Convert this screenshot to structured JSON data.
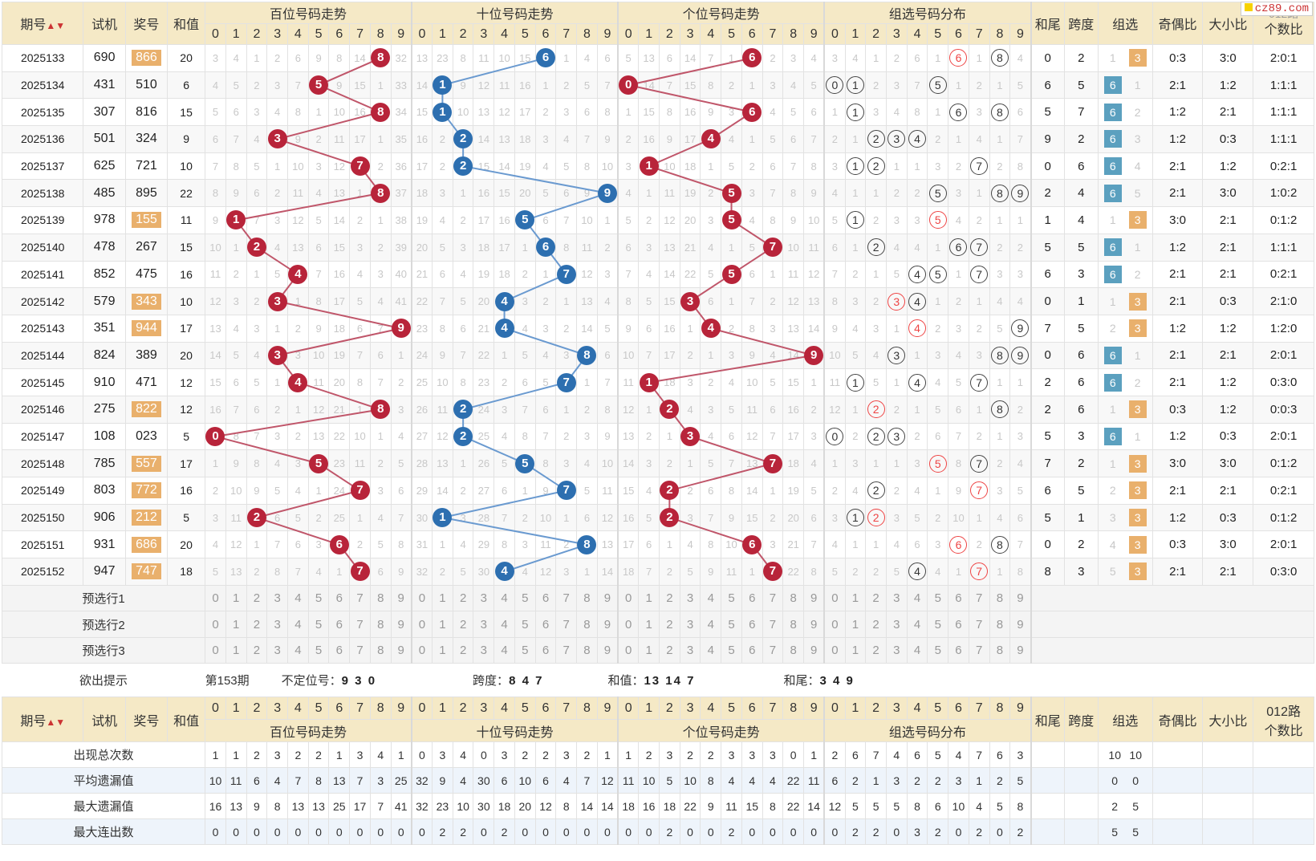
{
  "logo": "cz89.com",
  "header": {
    "issue": "期号",
    "sort_icon": "▲▼",
    "test": "试机",
    "draw": "奖号",
    "sum": "和值",
    "groups": [
      "百位号码走势",
      "十位号码走势",
      "个位号码走势",
      "组选号码分布"
    ],
    "digits": [
      "0",
      "1",
      "2",
      "3",
      "4",
      "5",
      "6",
      "7",
      "8",
      "9"
    ],
    "tail": "和尾",
    "span": "跨度",
    "group": "组选",
    "oe": "奇偶比",
    "bs": "大小比",
    "road_top": "012路",
    "road_bottom": "个数比"
  },
  "rows": [
    {
      "issue": "2025133",
      "test": "690",
      "draw": "866",
      "hl": true,
      "sum": "20",
      "h": [
        3,
        4,
        1,
        2,
        6,
        9,
        8,
        14,
        "8",
        32
      ],
      "t": [
        13,
        23,
        8,
        11,
        10,
        15,
        "6",
        1,
        4,
        6
      ],
      "u": [
        5,
        13,
        6,
        14,
        7,
        1,
        "6",
        2,
        3,
        4
      ],
      "g": [
        3,
        4,
        1,
        2,
        6,
        1,
        "6r",
        1,
        "8",
        4
      ],
      "tail": "0",
      "span": "2",
      "gz": "3",
      "oe": "0:3",
      "bs": "3:0",
      "road": "2:0:1"
    },
    {
      "issue": "2025134",
      "test": "431",
      "draw": "510",
      "hl": false,
      "sum": "6",
      "h": [
        4,
        5,
        2,
        3,
        7,
        "5",
        9,
        15,
        1,
        33
      ],
      "t": [
        14,
        "1",
        9,
        12,
        11,
        16,
        1,
        2,
        5,
        7
      ],
      "u": [
        "0",
        14,
        7,
        15,
        8,
        2,
        1,
        3,
        4,
        5
      ],
      "g": [
        "0",
        "1",
        2,
        3,
        7,
        "5",
        1,
        2,
        1,
        5
      ],
      "tail": "6",
      "span": "5",
      "gz": "6",
      "oe": "2:1",
      "bs": "1:2",
      "road": "1:1:1"
    },
    {
      "issue": "2025135",
      "test": "307",
      "draw": "816",
      "hl": false,
      "sum": "15",
      "h": [
        5,
        6,
        3,
        4,
        8,
        1,
        10,
        16,
        "8",
        34
      ],
      "t": [
        15,
        "1",
        10,
        13,
        12,
        17,
        2,
        3,
        6,
        8
      ],
      "u": [
        1,
        15,
        8,
        16,
        9,
        3,
        "6",
        4,
        5,
        6
      ],
      "g": [
        1,
        "1",
        3,
        4,
        8,
        1,
        "6",
        3,
        "8",
        6
      ],
      "tail": "5",
      "span": "7",
      "gz": "6",
      "oe": "1:2",
      "bs": "2:1",
      "road": "1:1:1"
    },
    {
      "issue": "2025136",
      "test": "501",
      "draw": "324",
      "hl": false,
      "sum": "9",
      "h": [
        6,
        7,
        4,
        "3",
        9,
        2,
        11,
        17,
        1,
        35
      ],
      "t": [
        16,
        2,
        "2",
        14,
        13,
        18,
        3,
        4,
        7,
        9
      ],
      "u": [
        2,
        16,
        9,
        17,
        "4",
        4,
        1,
        5,
        6,
        7
      ],
      "g": [
        2,
        1,
        "2",
        "3",
        "4",
        2,
        1,
        4,
        1,
        7
      ],
      "tail": "9",
      "span": "2",
      "gz": "6",
      "oe": "1:2",
      "bs": "0:3",
      "road": "1:1:1"
    },
    {
      "issue": "2025137",
      "test": "625",
      "draw": "721",
      "hl": false,
      "sum": "10",
      "h": [
        7,
        8,
        5,
        1,
        10,
        3,
        12,
        "7",
        2,
        36
      ],
      "t": [
        17,
        2,
        "2",
        15,
        14,
        19,
        4,
        5,
        8,
        10
      ],
      "u": [
        3,
        "1",
        10,
        18,
        1,
        5,
        2,
        6,
        7,
        8
      ],
      "g": [
        3,
        "1",
        "2",
        1,
        1,
        3,
        2,
        "7",
        2,
        8
      ],
      "tail": "0",
      "span": "6",
      "gz": "6",
      "oe": "2:1",
      "bs": "1:2",
      "road": "0:2:1"
    },
    {
      "issue": "2025138",
      "test": "485",
      "draw": "895",
      "hl": false,
      "sum": "22",
      "h": [
        8,
        9,
        6,
        2,
        11,
        4,
        13,
        1,
        "8",
        37
      ],
      "t": [
        18,
        3,
        1,
        16,
        15,
        20,
        5,
        6,
        9,
        "9"
      ],
      "u": [
        4,
        1,
        11,
        19,
        2,
        "5",
        3,
        7,
        8,
        9
      ],
      "g": [
        4,
        1,
        1,
        2,
        2,
        "5",
        3,
        1,
        "8",
        "9"
      ],
      "tail": "2",
      "span": "4",
      "gz": "6",
      "oe": "2:1",
      "bs": "3:0",
      "road": "1:0:2"
    },
    {
      "issue": "2025139",
      "test": "978",
      "draw": "155",
      "hl": true,
      "sum": "11",
      "h": [
        9,
        "1",
        7,
        3,
        12,
        5,
        14,
        2,
        1,
        38
      ],
      "t": [
        19,
        4,
        2,
        17,
        16,
        "5",
        6,
        7,
        10,
        1
      ],
      "u": [
        5,
        2,
        12,
        20,
        3,
        "5",
        4,
        8,
        9,
        10
      ],
      "g": [
        5,
        "1",
        2,
        3,
        3,
        "5r",
        4,
        2,
        1,
        1
      ],
      "tail": "1",
      "span": "4",
      "gz": "3",
      "oe": "3:0",
      "bs": "2:1",
      "road": "0:1:2"
    },
    {
      "issue": "2025140",
      "test": "478",
      "draw": "267",
      "hl": false,
      "sum": "15",
      "h": [
        10,
        1,
        "2",
        4,
        13,
        6,
        15,
        3,
        2,
        39
      ],
      "t": [
        20,
        5,
        3,
        18,
        17,
        1,
        "6",
        8,
        11,
        2
      ],
      "u": [
        6,
        3,
        13,
        21,
        4,
        1,
        5,
        "7",
        10,
        11
      ],
      "g": [
        6,
        1,
        "2",
        4,
        4,
        1,
        "6",
        "7",
        2,
        2
      ],
      "tail": "5",
      "span": "5",
      "gz": "6",
      "oe": "1:2",
      "bs": "2:1",
      "road": "1:1:1"
    },
    {
      "issue": "2025141",
      "test": "852",
      "draw": "475",
      "hl": false,
      "sum": "16",
      "h": [
        11,
        2,
        1,
        5,
        "4",
        7,
        16,
        4,
        3,
        40
      ],
      "t": [
        21,
        6,
        4,
        19,
        18,
        2,
        1,
        "7",
        12,
        3
      ],
      "u": [
        7,
        4,
        14,
        22,
        5,
        "5",
        6,
        1,
        11,
        12
      ],
      "g": [
        7,
        2,
        1,
        5,
        "4",
        "5",
        1,
        "7",
        3,
        3
      ],
      "tail": "6",
      "span": "3",
      "gz": "6",
      "oe": "2:1",
      "bs": "2:1",
      "road": "0:2:1"
    },
    {
      "issue": "2025142",
      "test": "579",
      "draw": "343",
      "hl": true,
      "sum": "10",
      "h": [
        12,
        3,
        2,
        "3",
        1,
        8,
        17,
        5,
        4,
        41
      ],
      "t": [
        22,
        7,
        5,
        20,
        "4",
        3,
        2,
        1,
        13,
        4
      ],
      "u": [
        8,
        5,
        15,
        "3",
        6,
        1,
        7,
        2,
        12,
        13
      ],
      "g": [
        8,
        3,
        2,
        "3r",
        "4",
        1,
        2,
        1,
        4,
        4
      ],
      "tail": "0",
      "span": "1",
      "gz": "3",
      "oe": "2:1",
      "bs": "0:3",
      "road": "2:1:0"
    },
    {
      "issue": "2025143",
      "test": "351",
      "draw": "944",
      "hl": true,
      "sum": "17",
      "h": [
        13,
        4,
        3,
        1,
        2,
        9,
        18,
        6,
        7,
        "9"
      ],
      "t": [
        23,
        8,
        6,
        21,
        "4",
        4,
        3,
        2,
        14,
        5
      ],
      "u": [
        9,
        6,
        16,
        1,
        "4",
        2,
        8,
        3,
        13,
        14
      ],
      "g": [
        9,
        4,
        3,
        1,
        "4r",
        2,
        3,
        2,
        5,
        "9"
      ],
      "tail": "7",
      "span": "5",
      "gz": "3",
      "oe": "1:2",
      "bs": "1:2",
      "road": "1:2:0"
    },
    {
      "issue": "2025144",
      "test": "824",
      "draw": "389",
      "hl": false,
      "sum": "20",
      "h": [
        14,
        5,
        4,
        "3",
        3,
        10,
        19,
        7,
        6,
        1
      ],
      "t": [
        24,
        9,
        7,
        22,
        1,
        5,
        4,
        3,
        "8",
        6
      ],
      "u": [
        10,
        7,
        17,
        2,
        1,
        3,
        9,
        4,
        14,
        "9"
      ],
      "g": [
        10,
        5,
        4,
        "3",
        1,
        3,
        4,
        3,
        "8",
        "9"
      ],
      "tail": "0",
      "span": "6",
      "gz": "6",
      "oe": "2:1",
      "bs": "2:1",
      "road": "2:0:1"
    },
    {
      "issue": "2025145",
      "test": "910",
      "draw": "471",
      "hl": false,
      "sum": "12",
      "h": [
        15,
        6,
        5,
        1,
        "4",
        11,
        20,
        8,
        7,
        2
      ],
      "t": [
        25,
        10,
        8,
        23,
        2,
        6,
        5,
        "7",
        1,
        7
      ],
      "u": [
        11,
        "1",
        18,
        3,
        2,
        4,
        10,
        5,
        15,
        1
      ],
      "g": [
        11,
        "1",
        5,
        1,
        "4",
        4,
        5,
        "7",
        1,
        1
      ],
      "tail": "2",
      "span": "6",
      "gz": "6",
      "oe": "2:1",
      "bs": "1:2",
      "road": "0:3:0"
    },
    {
      "issue": "2025146",
      "test": "275",
      "draw": "822",
      "hl": true,
      "sum": "12",
      "h": [
        16,
        7,
        6,
        2,
        1,
        12,
        21,
        1,
        "8",
        3
      ],
      "t": [
        26,
        11,
        "2",
        24,
        3,
        7,
        6,
        1,
        2,
        8
      ],
      "u": [
        12,
        1,
        "2",
        4,
        3,
        5,
        11,
        6,
        16,
        2
      ],
      "g": [
        12,
        1,
        "2r",
        2,
        1,
        5,
        6,
        1,
        "8",
        2
      ],
      "tail": "2",
      "span": "6",
      "gz": "3",
      "oe": "0:3",
      "bs": "1:2",
      "road": "0:0:3"
    },
    {
      "issue": "2025147",
      "test": "108",
      "draw": "023",
      "hl": false,
      "sum": "5",
      "h": [
        "0",
        8,
        7,
        3,
        2,
        13,
        22,
        10,
        1,
        4
      ],
      "t": [
        27,
        12,
        "2",
        25,
        4,
        8,
        7,
        2,
        3,
        9
      ],
      "u": [
        13,
        2,
        1,
        "3",
        4,
        6,
        12,
        7,
        17,
        3
      ],
      "g": [
        "0",
        2,
        "2",
        "3",
        2,
        6,
        7,
        2,
        1,
        3
      ],
      "tail": "5",
      "span": "3",
      "gz": "6",
      "oe": "1:2",
      "bs": "0:3",
      "road": "2:0:1"
    },
    {
      "issue": "2025148",
      "test": "785",
      "draw": "557",
      "hl": true,
      "sum": "17",
      "h": [
        1,
        9,
        8,
        4,
        3,
        "5",
        23,
        11,
        2,
        5
      ],
      "t": [
        28,
        13,
        1,
        26,
        5,
        "5",
        8,
        3,
        4,
        10
      ],
      "u": [
        14,
        3,
        2,
        1,
        5,
        7,
        13,
        "7",
        18,
        4
      ],
      "g": [
        1,
        3,
        1,
        1,
        3,
        "5r",
        8,
        "7",
        2,
        4
      ],
      "tail": "7",
      "span": "2",
      "gz": "3",
      "oe": "3:0",
      "bs": "3:0",
      "road": "0:1:2"
    },
    {
      "issue": "2025149",
      "test": "803",
      "draw": "772",
      "hl": true,
      "sum": "16",
      "h": [
        2,
        10,
        9,
        5,
        4,
        1,
        24,
        "7",
        3,
        6
      ],
      "t": [
        29,
        14,
        2,
        27,
        6,
        1,
        9,
        "7",
        5,
        11
      ],
      "u": [
        15,
        4,
        "2",
        2,
        6,
        8,
        14,
        1,
        19,
        5
      ],
      "g": [
        2,
        4,
        "2",
        2,
        4,
        1,
        9,
        "7r",
        3,
        5
      ],
      "tail": "6",
      "span": "5",
      "gz": "3",
      "oe": "2:1",
      "bs": "2:1",
      "road": "0:2:1"
    },
    {
      "issue": "2025150",
      "test": "906",
      "draw": "212",
      "hl": true,
      "sum": "5",
      "h": [
        3,
        11,
        "2",
        6,
        5,
        2,
        25,
        1,
        4,
        7
      ],
      "t": [
        30,
        "1",
        3,
        28,
        7,
        2,
        10,
        1,
        6,
        12
      ],
      "u": [
        16,
        5,
        "2",
        3,
        7,
        9,
        15,
        2,
        20,
        6
      ],
      "g": [
        3,
        "1",
        "2r",
        3,
        5,
        2,
        10,
        1,
        4,
        6
      ],
      "tail": "5",
      "span": "1",
      "gz": "3",
      "oe": "1:2",
      "bs": "0:3",
      "road": "0:1:2"
    },
    {
      "issue": "2025151",
      "test": "931",
      "draw": "686",
      "hl": true,
      "sum": "20",
      "h": [
        4,
        12,
        1,
        7,
        6,
        3,
        "6",
        2,
        5,
        8
      ],
      "t": [
        31,
        1,
        4,
        29,
        8,
        3,
        11,
        2,
        "8",
        13
      ],
      "u": [
        17,
        6,
        1,
        4,
        8,
        10,
        "6",
        3,
        21,
        7
      ],
      "g": [
        4,
        1,
        1,
        4,
        6,
        3,
        "6r",
        2,
        "8",
        7
      ],
      "tail": "0",
      "span": "2",
      "gz": "3",
      "oe": "0:3",
      "bs": "3:0",
      "road": "2:0:1"
    },
    {
      "issue": "2025152",
      "test": "947",
      "draw": "747",
      "hl": true,
      "sum": "18",
      "h": [
        5,
        13,
        2,
        8,
        7,
        4,
        1,
        "7",
        6,
        9
      ],
      "t": [
        32,
        2,
        5,
        30,
        "4",
        4,
        12,
        3,
        1,
        14
      ],
      "u": [
        18,
        7,
        2,
        5,
        9,
        11,
        1,
        "7",
        22,
        8
      ],
      "g": [
        5,
        2,
        2,
        5,
        "4",
        4,
        1,
        "7r",
        1,
        8
      ],
      "tail": "8",
      "span": "3",
      "gz": "3",
      "oe": "2:1",
      "bs": "2:1",
      "road": "0:3:0"
    }
  ],
  "gz_other": {
    "2025133": "1",
    "2025134": "1",
    "2025135": "2",
    "2025136": "3",
    "2025137": "4",
    "2025138": "5",
    "2025139": "1",
    "2025140": "1",
    "2025141": "2",
    "2025142": "1",
    "2025143": "2",
    "2025144": "1",
    "2025145": "2",
    "2025146": "1",
    "2025147": "1",
    "2025148": "1",
    "2025149": "2",
    "2025150": "3",
    "2025151": "4",
    "2025152": "5"
  },
  "preselect": [
    "预选行1",
    "预选行2",
    "预选行3"
  ],
  "tip": {
    "label": "欲出提示",
    "issue": "第153期",
    "nopos_label": "不定位号：",
    "nopos": "9 3 0",
    "span_label": "跨度：",
    "span": "8 4 7",
    "sum_label": "和值：",
    "sum": "13 14 7",
    "tail_label": "和尾：",
    "tail": "3 4 9"
  },
  "stats": [
    {
      "label": "出现总次数",
      "h": [
        1,
        1,
        2,
        3,
        2,
        2,
        1,
        3,
        4,
        1
      ],
      "t": [
        0,
        3,
        4,
        0,
        3,
        2,
        2,
        3,
        2,
        1
      ],
      "u": [
        1,
        2,
        3,
        2,
        2,
        3,
        3,
        3,
        0,
        1
      ],
      "g": [
        2,
        6,
        7,
        4,
        6,
        5,
        4,
        7,
        6,
        3
      ],
      "gz": [
        "10",
        "10"
      ]
    },
    {
      "label": "平均遗漏值",
      "h": [
        10,
        11,
        6,
        4,
        7,
        8,
        13,
        7,
        3,
        25
      ],
      "t": [
        32,
        9,
        4,
        30,
        6,
        10,
        6,
        4,
        7,
        12
      ],
      "u": [
        11,
        10,
        5,
        10,
        8,
        4,
        4,
        4,
        22,
        11
      ],
      "g": [
        6,
        2,
        1,
        3,
        2,
        2,
        3,
        1,
        2,
        5
      ],
      "gz": [
        "0",
        "0"
      ]
    },
    {
      "label": "最大遗漏值",
      "h": [
        16,
        13,
        9,
        8,
        13,
        13,
        25,
        17,
        7,
        41
      ],
      "t": [
        32,
        23,
        10,
        30,
        18,
        20,
        12,
        8,
        14,
        14
      ],
      "u": [
        18,
        16,
        18,
        22,
        9,
        11,
        15,
        8,
        22,
        14
      ],
      "g": [
        12,
        5,
        5,
        5,
        8,
        6,
        10,
        4,
        5,
        8
      ],
      "gz": [
        "2",
        "5"
      ]
    },
    {
      "label": "最大连出数",
      "h": [
        0,
        0,
        0,
        0,
        0,
        0,
        0,
        0,
        0,
        0
      ],
      "t": [
        0,
        2,
        2,
        0,
        2,
        0,
        0,
        0,
        0,
        0
      ],
      "u": [
        0,
        0,
        2,
        0,
        0,
        2,
        0,
        0,
        0,
        0
      ],
      "g": [
        0,
        2,
        2,
        0,
        3,
        2,
        0,
        2,
        0,
        2
      ],
      "gz": [
        "5",
        "5"
      ]
    }
  ]
}
